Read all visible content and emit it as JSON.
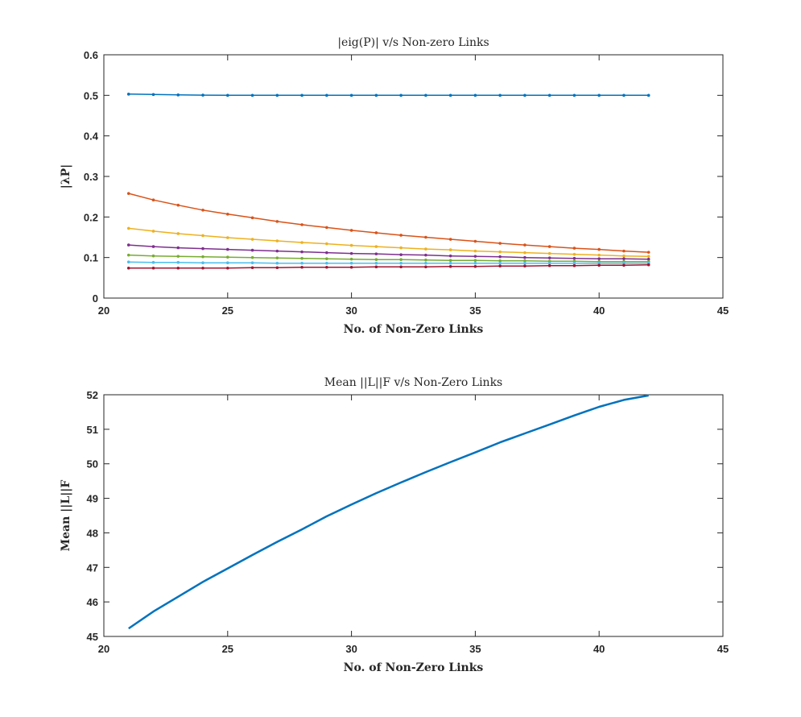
{
  "chart_data": [
    {
      "type": "line",
      "title": "|eig(P)| v/s Non-zero Links",
      "xlabel": "No. of Non-Zero Links",
      "ylabel": "|λP|",
      "xlim": [
        20,
        45
      ],
      "ylim": [
        0,
        0.6
      ],
      "xticks": [
        "20",
        "25",
        "30",
        "35",
        "40",
        "45"
      ],
      "yticks": [
        "0",
        "0.1",
        "0.2",
        "0.3",
        "0.4",
        "0.5",
        "0.6"
      ],
      "grid": false,
      "markers": true,
      "x": [
        21,
        22,
        23,
        24,
        25,
        26,
        27,
        28,
        29,
        30,
        31,
        32,
        33,
        34,
        35,
        36,
        37,
        38,
        39,
        40,
        41,
        42
      ],
      "series": [
        {
          "color": "#0072BD",
          "values": [
            0.503,
            0.502,
            0.501,
            0.5005,
            0.5,
            0.5,
            0.5,
            0.5,
            0.5,
            0.5,
            0.5,
            0.5,
            0.5,
            0.5,
            0.5,
            0.5,
            0.5,
            0.5,
            0.5,
            0.5,
            0.5,
            0.5
          ]
        },
        {
          "color": "#D95319",
          "values": [
            0.258,
            0.242,
            0.229,
            0.217,
            0.207,
            0.198,
            0.189,
            0.181,
            0.174,
            0.167,
            0.161,
            0.155,
            0.15,
            0.145,
            0.14,
            0.135,
            0.131,
            0.127,
            0.123,
            0.12,
            0.116,
            0.113
          ]
        },
        {
          "color": "#EDB120",
          "values": [
            0.172,
            0.165,
            0.159,
            0.154,
            0.149,
            0.145,
            0.141,
            0.137,
            0.134,
            0.13,
            0.127,
            0.124,
            0.121,
            0.119,
            0.116,
            0.114,
            0.112,
            0.11,
            0.108,
            0.106,
            0.104,
            0.103
          ]
        },
        {
          "color": "#7E2F8E",
          "values": [
            0.131,
            0.127,
            0.124,
            0.122,
            0.12,
            0.118,
            0.116,
            0.114,
            0.112,
            0.11,
            0.109,
            0.107,
            0.106,
            0.104,
            0.103,
            0.102,
            0.1,
            0.099,
            0.098,
            0.097,
            0.097,
            0.096
          ]
        },
        {
          "color": "#77AC30",
          "values": [
            0.106,
            0.104,
            0.103,
            0.102,
            0.101,
            0.1,
            0.099,
            0.098,
            0.097,
            0.096,
            0.095,
            0.095,
            0.094,
            0.093,
            0.093,
            0.092,
            0.092,
            0.091,
            0.091,
            0.09,
            0.09,
            0.09
          ]
        },
        {
          "color": "#4DBEEE",
          "values": [
            0.089,
            0.088,
            0.088,
            0.087,
            0.087,
            0.087,
            0.086,
            0.086,
            0.086,
            0.086,
            0.086,
            0.086,
            0.086,
            0.086,
            0.086,
            0.086,
            0.086,
            0.086,
            0.086,
            0.086,
            0.086,
            0.086
          ]
        },
        {
          "color": "#A2142F",
          "values": [
            0.074,
            0.074,
            0.074,
            0.074,
            0.074,
            0.075,
            0.075,
            0.076,
            0.076,
            0.076,
            0.077,
            0.077,
            0.077,
            0.078,
            0.078,
            0.079,
            0.079,
            0.08,
            0.08,
            0.081,
            0.081,
            0.082
          ]
        }
      ]
    },
    {
      "type": "line",
      "title": "Mean ||L||F v/s Non-Zero Links",
      "xlabel": "No. of Non-Zero Links",
      "ylabel": "Mean ||L||F",
      "xlim": [
        20,
        45
      ],
      "ylim": [
        45,
        52
      ],
      "xticks": [
        "20",
        "25",
        "30",
        "35",
        "40",
        "45"
      ],
      "yticks": [
        "45",
        "46",
        "47",
        "48",
        "49",
        "50",
        "51",
        "52"
      ],
      "grid": false,
      "markers": false,
      "x": [
        21,
        22,
        23,
        24,
        25,
        26,
        27,
        28,
        29,
        30,
        31,
        32,
        33,
        34,
        35,
        36,
        37,
        38,
        39,
        40,
        41,
        42
      ],
      "series": [
        {
          "color": "#0072BD",
          "values": [
            45.23,
            45.72,
            46.15,
            46.58,
            46.97,
            47.36,
            47.74,
            48.1,
            48.48,
            48.82,
            49.15,
            49.46,
            49.76,
            50.05,
            50.33,
            50.62,
            50.88,
            51.14,
            51.4,
            51.65,
            51.85,
            51.98
          ]
        }
      ]
    }
  ]
}
